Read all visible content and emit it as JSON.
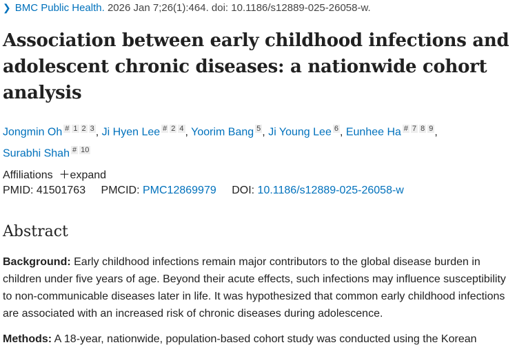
{
  "citation": {
    "journal": "BMC Public Health.",
    "details": "2026 Jan 7;26(1):464. doi: 10.1186/s12889-025-26058-w."
  },
  "title": "Association between early childhood infections and adolescent chronic diseases: a nationwide cohort analysis",
  "authors": [
    {
      "name": "Jongmin Oh",
      "sups": [
        "#",
        "1",
        "2",
        "3"
      ],
      "sep": ", "
    },
    {
      "name": "Ji Hyen Lee",
      "sups": [
        "#",
        "2",
        "4"
      ],
      "sep": ", "
    },
    {
      "name": "Yoorim Bang",
      "sups": [
        "5"
      ],
      "sep": ", "
    },
    {
      "name": "Ji Young Lee",
      "sups": [
        "6"
      ],
      "sep": ", "
    },
    {
      "name": "Eunhee Ha",
      "sups": [
        "#",
        "7",
        "8",
        "9"
      ],
      "sep": ","
    },
    {
      "name": "Surabhi Shah",
      "sups": [
        "#",
        "10"
      ],
      "sep": ""
    }
  ],
  "affiliations": {
    "label": "Affiliations",
    "expand": "expand"
  },
  "ids": {
    "pmid_label": "PMID:",
    "pmid": "41501763",
    "pmcid_label": "PMCID:",
    "pmcid": "PMC12869979",
    "doi_label": "DOI:",
    "doi": "10.1186/s12889-025-26058-w"
  },
  "abstract": {
    "heading": "Abstract",
    "background_label": "Background:",
    "background": "Early childhood infections remain major contributors to the global disease burden in children under five years of age. Beyond their acute effects, such infections may influence susceptibility to non-communicable diseases later in life. It was hypothesized that common early childhood infections are associated with an increased risk of chronic diseases during adolescence.",
    "methods_label": "Methods:",
    "methods": "A 18-year, nationwide, population-based cohort study was conducted using the Korean"
  }
}
